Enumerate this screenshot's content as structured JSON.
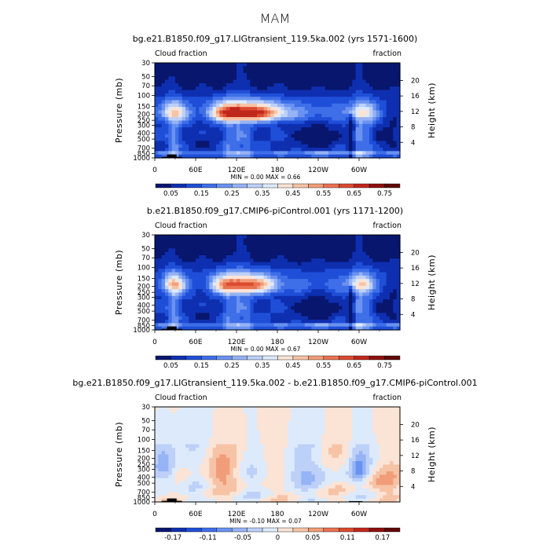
{
  "page": {
    "title": "MAM"
  },
  "palettes": {
    "positive": [
      "#08166e",
      "#0e2fb0",
      "#1f4fd8",
      "#3e6fe8",
      "#6a92f0",
      "#95b3f5",
      "#bcd0f8",
      "#ddeafb",
      "#fbe4d6",
      "#f7c3a6",
      "#f19d79",
      "#e97253",
      "#dc4a2f",
      "#c0271b",
      "#8f1010",
      "#5f0808"
    ],
    "difference": [
      "#08166e",
      "#0e2fb0",
      "#1f4fd8",
      "#3e6fe8",
      "#6a92f0",
      "#95b3f5",
      "#bcd0f8",
      "#ddeafb",
      "#fbe4d6",
      "#f7c3a6",
      "#f19d79",
      "#e97253",
      "#dc4a2f",
      "#c0271b",
      "#8f1010",
      "#5f0808"
    ]
  },
  "chart_data": [
    {
      "type": "heatmap",
      "title": "bg.e21.B1850.f09_g17.LIGtransient_119.5ka.002 (yrs 1571-1600)",
      "left_label": "Cloud fraction",
      "right_label": "fraction",
      "ylabel": "Pressure (mb)",
      "y2label": "Height (km)",
      "x_ticks": [
        "0",
        "60E",
        "120E",
        "180",
        "120W",
        "60W"
      ],
      "y_ticks": [
        "30",
        "50",
        "70",
        "100",
        "150",
        "200",
        "250",
        "300",
        "400",
        "500",
        "700",
        "850",
        "1000"
      ],
      "y2_ticks": [
        "20",
        "16",
        "12",
        "8",
        "4"
      ],
      "minmax": "MIN =    0.00   MAX =    0.66",
      "colorbar_labels": [
        "0.05",
        "0.15",
        "0.25",
        "0.35",
        "0.45",
        "0.55",
        "0.65",
        "0.75"
      ],
      "value_range": [
        0.0,
        0.8
      ],
      "levels": [
        0.05,
        0.1,
        0.15,
        0.2,
        0.25,
        0.3,
        0.35,
        0.4,
        0.45,
        0.5,
        0.55,
        0.6,
        0.65,
        0.7,
        0.75
      ],
      "min": 0.0,
      "max": 0.66,
      "palette": "positive"
    },
    {
      "type": "heatmap",
      "title": "b.e21.B1850.f09_g17.CMIP6-piControl.001 (yrs 1171-1200)",
      "left_label": "Cloud fraction",
      "right_label": "fraction",
      "ylabel": "Pressure (mb)",
      "y2label": "Height (km)",
      "x_ticks": [
        "0",
        "60E",
        "120E",
        "180",
        "120W",
        "60W"
      ],
      "y_ticks": [
        "30",
        "50",
        "70",
        "100",
        "150",
        "200",
        "250",
        "300",
        "400",
        "500",
        "700",
        "850",
        "1000"
      ],
      "y2_ticks": [
        "20",
        "16",
        "12",
        "8",
        "4"
      ],
      "minmax": "MIN =    0.00   MAX =    0.67",
      "colorbar_labels": [
        "0.05",
        "0.15",
        "0.25",
        "0.35",
        "0.45",
        "0.55",
        "0.65",
        "0.75"
      ],
      "value_range": [
        0.0,
        0.8
      ],
      "levels": [
        0.05,
        0.1,
        0.15,
        0.2,
        0.25,
        0.3,
        0.35,
        0.4,
        0.45,
        0.5,
        0.55,
        0.6,
        0.65,
        0.7,
        0.75
      ],
      "min": 0.0,
      "max": 0.67,
      "palette": "positive"
    },
    {
      "type": "heatmap",
      "title": "bg.e21.B1850.f09_g17.LIGtransient_119.5ka.002 - b.e21.B1850.f09_g17.CMIP6-piControl.001",
      "left_label": "Cloud fraction",
      "right_label": "fraction",
      "ylabel": "Pressure (mb)",
      "y2label": "Height (km)",
      "x_ticks": [
        "0",
        "60E",
        "120E",
        "180",
        "120W",
        "60W"
      ],
      "y_ticks": [
        "30",
        "50",
        "70",
        "100",
        "150",
        "200",
        "250",
        "300",
        "400",
        "500",
        "700",
        "850",
        "1000"
      ],
      "y2_ticks": [
        "20",
        "16",
        "12",
        "8",
        "4"
      ],
      "minmax": "MIN =   -0.10   MAX =    0.07",
      "colorbar_labels": [
        "-0.17",
        "-0.11",
        "-0.05",
        "0",
        "0.05",
        "0.11",
        "0.17"
      ],
      "value_range": [
        -0.2,
        0.2
      ],
      "levels": [
        -0.17,
        -0.14,
        -0.11,
        -0.08,
        -0.05,
        -0.02,
        0,
        0.02,
        0.05,
        0.08,
        0.11,
        0.14,
        0.17
      ],
      "min": -0.1,
      "max": 0.07,
      "palette": "difference"
    }
  ]
}
